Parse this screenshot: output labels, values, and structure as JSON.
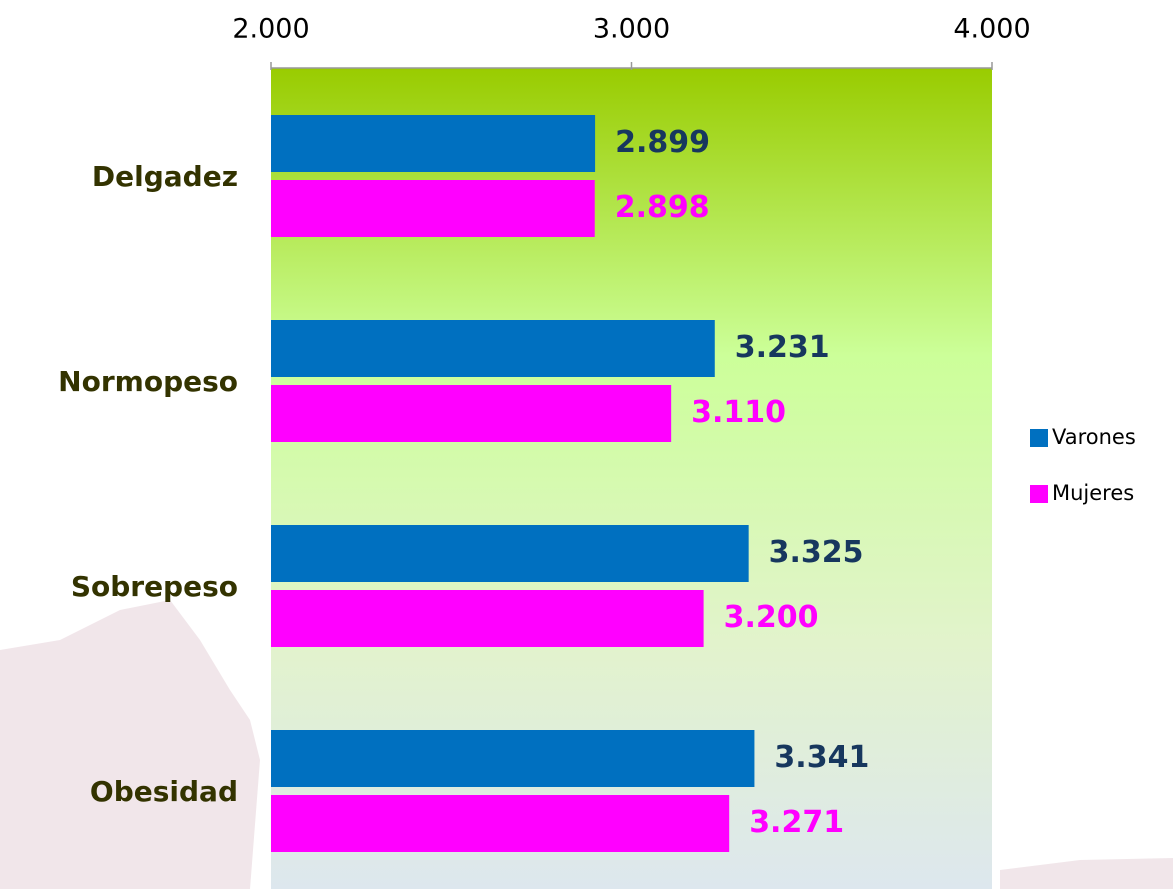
{
  "chart_data": {
    "type": "barh",
    "categories": [
      "Delgadez",
      "Normopeso",
      "Sobrepeso",
      "Obesidad"
    ],
    "series": [
      {
        "name": "Varones",
        "color": "#0070c0",
        "values": [
          2899,
          3231,
          3325,
          3341
        ],
        "value_labels": [
          "2.899",
          "3.231",
          "3.325",
          "3.341"
        ]
      },
      {
        "name": "Mujeres",
        "color": "#ff00ff",
        "values": [
          2898,
          3110,
          3200,
          3271
        ],
        "value_labels": [
          "2.898",
          "3.110",
          "3.200",
          "3.271"
        ]
      }
    ],
    "xlim": [
      2000,
      4000
    ],
    "xticks": [
      {
        "value": 2000,
        "label": "2.000"
      },
      {
        "value": 3000,
        "label": "3.000"
      },
      {
        "value": 4000,
        "label": "4.000"
      }
    ],
    "legend": "right"
  }
}
